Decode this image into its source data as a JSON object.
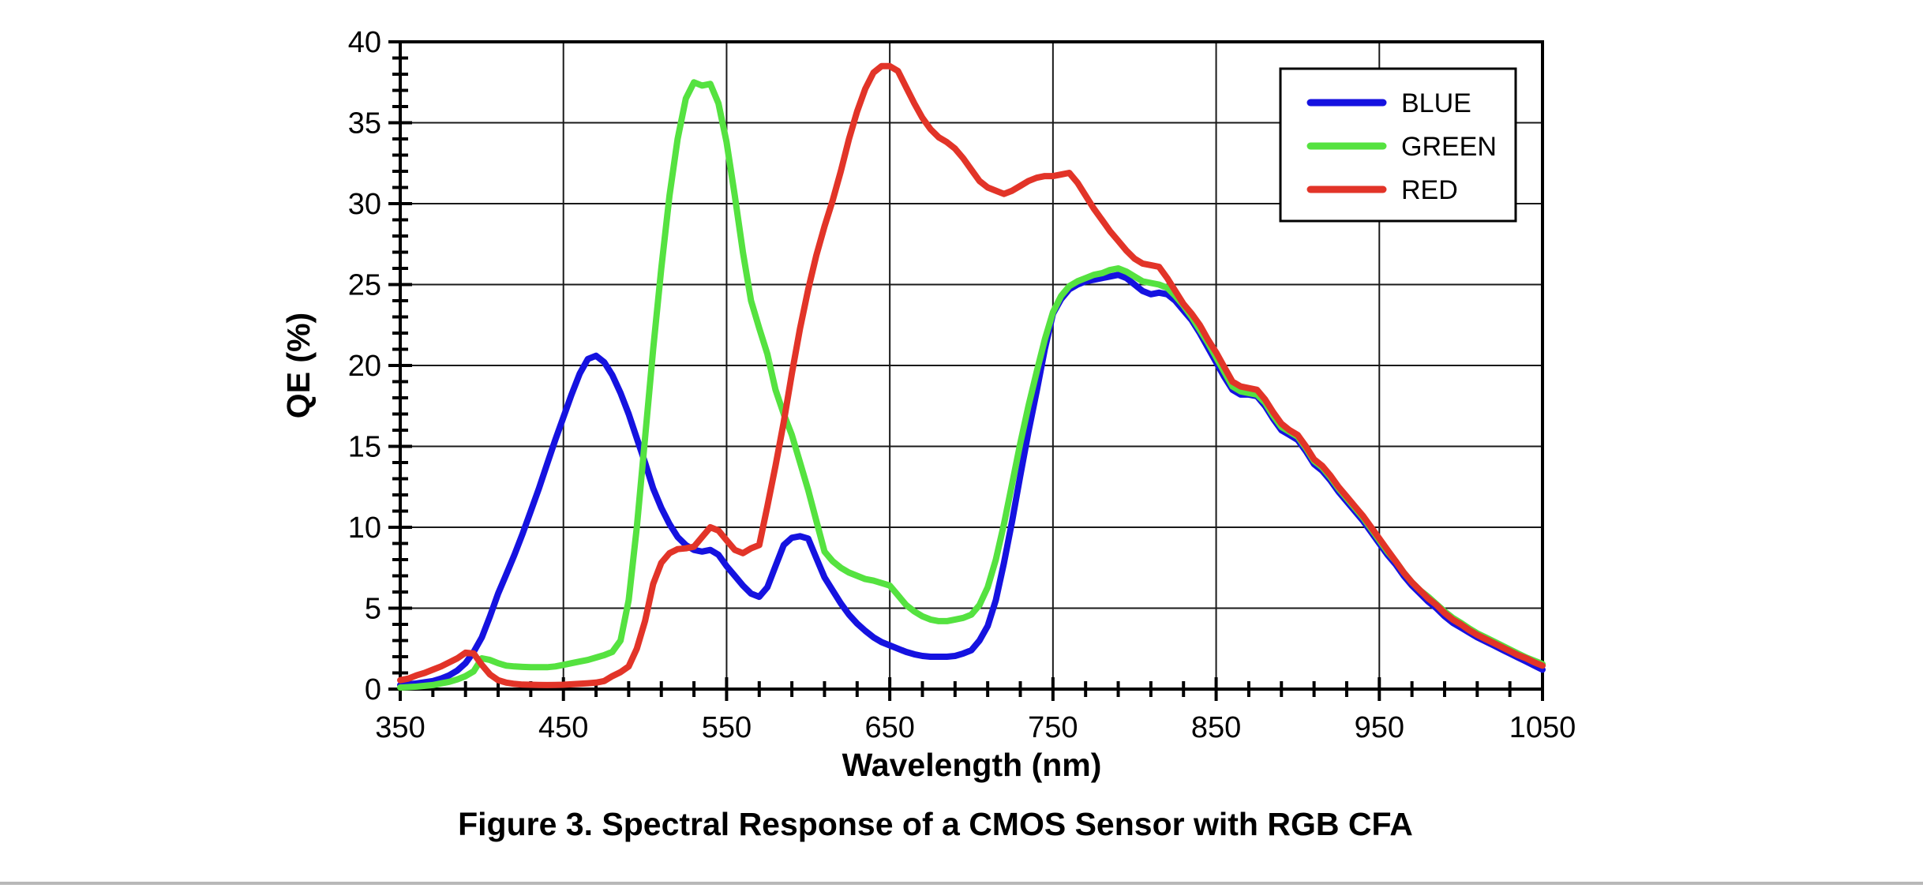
{
  "figure": {
    "title": "Figure 3. Spectral Response of a CMOS Sensor with RGB CFA"
  },
  "chart_data": {
    "type": "line",
    "title": "Figure 3. Spectral Response of a CMOS Sensor with RGB CFA",
    "xlabel": "Wavelength (nm)",
    "ylabel": "QE (%)",
    "xlim": [
      350,
      1050
    ],
    "ylim": [
      0,
      40
    ],
    "x_tick_step": 100,
    "x_minor_tick_step": 20,
    "y_tick_step": 5,
    "y_minor_tick_step": 1,
    "x_tick_labels": [
      "350",
      "450",
      "550",
      "650",
      "750",
      "850",
      "950",
      "1050"
    ],
    "y_tick_labels": [
      "0",
      "5",
      "10",
      "15",
      "20",
      "25",
      "30",
      "35",
      "40"
    ],
    "grid": true,
    "legend_position": "top-right",
    "axis_color": "#000000",
    "grid_color": "#1a1a1a",
    "wavelengths_nm": [
      350,
      355,
      360,
      365,
      370,
      375,
      380,
      385,
      390,
      395,
      400,
      405,
      410,
      415,
      420,
      425,
      430,
      435,
      440,
      445,
      450,
      455,
      460,
      465,
      470,
      475,
      480,
      485,
      490,
      495,
      500,
      505,
      510,
      515,
      520,
      525,
      530,
      535,
      540,
      545,
      550,
      555,
      560,
      565,
      570,
      575,
      580,
      585,
      590,
      595,
      600,
      605,
      610,
      615,
      620,
      625,
      630,
      635,
      640,
      645,
      650,
      655,
      660,
      665,
      670,
      675,
      680,
      685,
      690,
      695,
      700,
      705,
      710,
      715,
      720,
      725,
      730,
      735,
      740,
      745,
      750,
      755,
      760,
      765,
      770,
      775,
      780,
      785,
      790,
      795,
      800,
      805,
      810,
      815,
      820,
      825,
      830,
      835,
      840,
      845,
      850,
      855,
      860,
      865,
      870,
      875,
      880,
      885,
      890,
      895,
      900,
      905,
      910,
      915,
      920,
      925,
      930,
      935,
      940,
      945,
      950,
      955,
      960,
      965,
      970,
      975,
      980,
      985,
      990,
      995,
      1000,
      1005,
      1010,
      1015,
      1020,
      1025,
      1030,
      1035,
      1040,
      1045,
      1050
    ],
    "series": [
      {
        "name": "BLUE",
        "color": "#1512e0",
        "values": [
          0.25,
          0.3,
          0.35,
          0.42,
          0.5,
          0.65,
          0.85,
          1.15,
          1.6,
          2.3,
          3.2,
          4.5,
          5.9,
          7.1,
          8.3,
          9.6,
          11.0,
          12.4,
          13.9,
          15.4,
          16.8,
          18.2,
          19.5,
          20.4,
          20.6,
          20.2,
          19.4,
          18.3,
          17.0,
          15.5,
          14.0,
          12.4,
          11.2,
          10.2,
          9.4,
          8.9,
          8.6,
          8.5,
          8.6,
          8.3,
          7.6,
          7.0,
          6.4,
          5.9,
          5.7,
          6.3,
          7.6,
          8.9,
          9.35,
          9.45,
          9.3,
          8.1,
          6.9,
          6.1,
          5.3,
          4.6,
          4.05,
          3.6,
          3.2,
          2.9,
          2.7,
          2.5,
          2.3,
          2.15,
          2.05,
          2.0,
          2.0,
          2.0,
          2.05,
          2.2,
          2.4,
          3.0,
          3.9,
          5.5,
          7.8,
          10.4,
          13.2,
          15.9,
          18.4,
          21.0,
          23.2,
          24.1,
          24.7,
          25.0,
          25.2,
          25.3,
          25.4,
          25.5,
          25.6,
          25.4,
          25.0,
          24.6,
          24.4,
          24.5,
          24.4,
          24.0,
          23.4,
          22.8,
          22.0,
          21.1,
          20.2,
          19.3,
          18.5,
          18.2,
          18.2,
          18.1,
          17.5,
          16.7,
          16.0,
          15.7,
          15.4,
          14.7,
          13.9,
          13.5,
          12.9,
          12.2,
          11.6,
          11.0,
          10.4,
          9.7,
          9.0,
          8.3,
          7.7,
          7.0,
          6.4,
          5.9,
          5.4,
          5.0,
          4.5,
          4.1,
          3.8,
          3.5,
          3.2,
          2.95,
          2.7,
          2.45,
          2.2,
          1.95,
          1.7,
          1.45,
          1.2
        ]
      },
      {
        "name": "GREEN",
        "color": "#55e240",
        "values": [
          0.1,
          0.12,
          0.15,
          0.2,
          0.25,
          0.35,
          0.45,
          0.6,
          0.8,
          1.1,
          1.9,
          1.8,
          1.6,
          1.45,
          1.4,
          1.37,
          1.35,
          1.35,
          1.35,
          1.4,
          1.5,
          1.6,
          1.7,
          1.8,
          1.95,
          2.1,
          2.3,
          3.0,
          5.5,
          10.0,
          15.5,
          21.0,
          26.0,
          30.5,
          34.0,
          36.5,
          37.5,
          37.3,
          37.4,
          36.2,
          33.8,
          30.5,
          27.0,
          24.0,
          22.3,
          20.7,
          18.5,
          17.0,
          15.7,
          14.0,
          12.3,
          10.4,
          8.5,
          7.9,
          7.5,
          7.2,
          7.0,
          6.8,
          6.7,
          6.55,
          6.4,
          5.8,
          5.2,
          4.8,
          4.5,
          4.3,
          4.2,
          4.2,
          4.3,
          4.4,
          4.6,
          5.2,
          6.3,
          8.0,
          10.2,
          12.7,
          15.2,
          17.5,
          19.6,
          21.6,
          23.3,
          24.3,
          24.9,
          25.2,
          25.4,
          25.6,
          25.7,
          25.9,
          26.0,
          25.8,
          25.5,
          25.2,
          25.1,
          25.0,
          24.8,
          24.3,
          23.7,
          23.0,
          22.2,
          21.4,
          20.5,
          19.6,
          18.7,
          18.4,
          18.3,
          18.2,
          17.7,
          16.9,
          16.2,
          15.9,
          15.6,
          14.9,
          14.1,
          13.7,
          13.1,
          12.4,
          11.8,
          11.2,
          10.6,
          9.9,
          9.2,
          8.5,
          7.9,
          7.2,
          6.6,
          6.1,
          5.7,
          5.25,
          4.8,
          4.4,
          4.1,
          3.75,
          3.45,
          3.2,
          2.95,
          2.7,
          2.45,
          2.2,
          1.95,
          1.75,
          1.55
        ]
      },
      {
        "name": "RED",
        "color": "#e23428",
        "values": [
          0.55,
          0.65,
          0.85,
          1.0,
          1.2,
          1.4,
          1.65,
          1.9,
          2.25,
          2.2,
          1.5,
          0.9,
          0.55,
          0.4,
          0.32,
          0.28,
          0.27,
          0.26,
          0.25,
          0.26,
          0.27,
          0.3,
          0.33,
          0.36,
          0.4,
          0.5,
          0.8,
          1.05,
          1.4,
          2.5,
          4.2,
          6.5,
          7.8,
          8.4,
          8.65,
          8.7,
          8.8,
          9.4,
          10.0,
          9.8,
          9.2,
          8.6,
          8.4,
          8.7,
          8.9,
          11.3,
          13.8,
          16.5,
          19.5,
          22.3,
          24.7,
          26.8,
          28.6,
          30.2,
          32.0,
          34.0,
          35.7,
          37.1,
          38.1,
          38.5,
          38.5,
          38.2,
          37.2,
          36.2,
          35.3,
          34.6,
          34.1,
          33.8,
          33.4,
          32.8,
          32.1,
          31.4,
          31.0,
          30.8,
          30.6,
          30.8,
          31.1,
          31.4,
          31.6,
          31.7,
          31.7,
          31.8,
          31.9,
          31.3,
          30.5,
          29.7,
          29.0,
          28.3,
          27.7,
          27.1,
          26.6,
          26.3,
          26.2,
          26.1,
          25.4,
          24.6,
          23.8,
          23.2,
          22.5,
          21.6,
          20.8,
          19.9,
          19.0,
          18.7,
          18.6,
          18.5,
          17.9,
          17.1,
          16.4,
          16.0,
          15.7,
          15.0,
          14.2,
          13.8,
          13.2,
          12.5,
          11.9,
          11.3,
          10.7,
          10.0,
          9.3,
          8.6,
          7.9,
          7.2,
          6.6,
          6.1,
          5.6,
          5.2,
          4.7,
          4.3,
          4.0,
          3.65,
          3.35,
          3.1,
          2.85,
          2.6,
          2.35,
          2.1,
          1.9,
          1.65,
          1.45
        ]
      }
    ]
  },
  "legend": {
    "entries": [
      "BLUE",
      "GREEN",
      "RED"
    ]
  },
  "separator_color": "#b8b8b8"
}
